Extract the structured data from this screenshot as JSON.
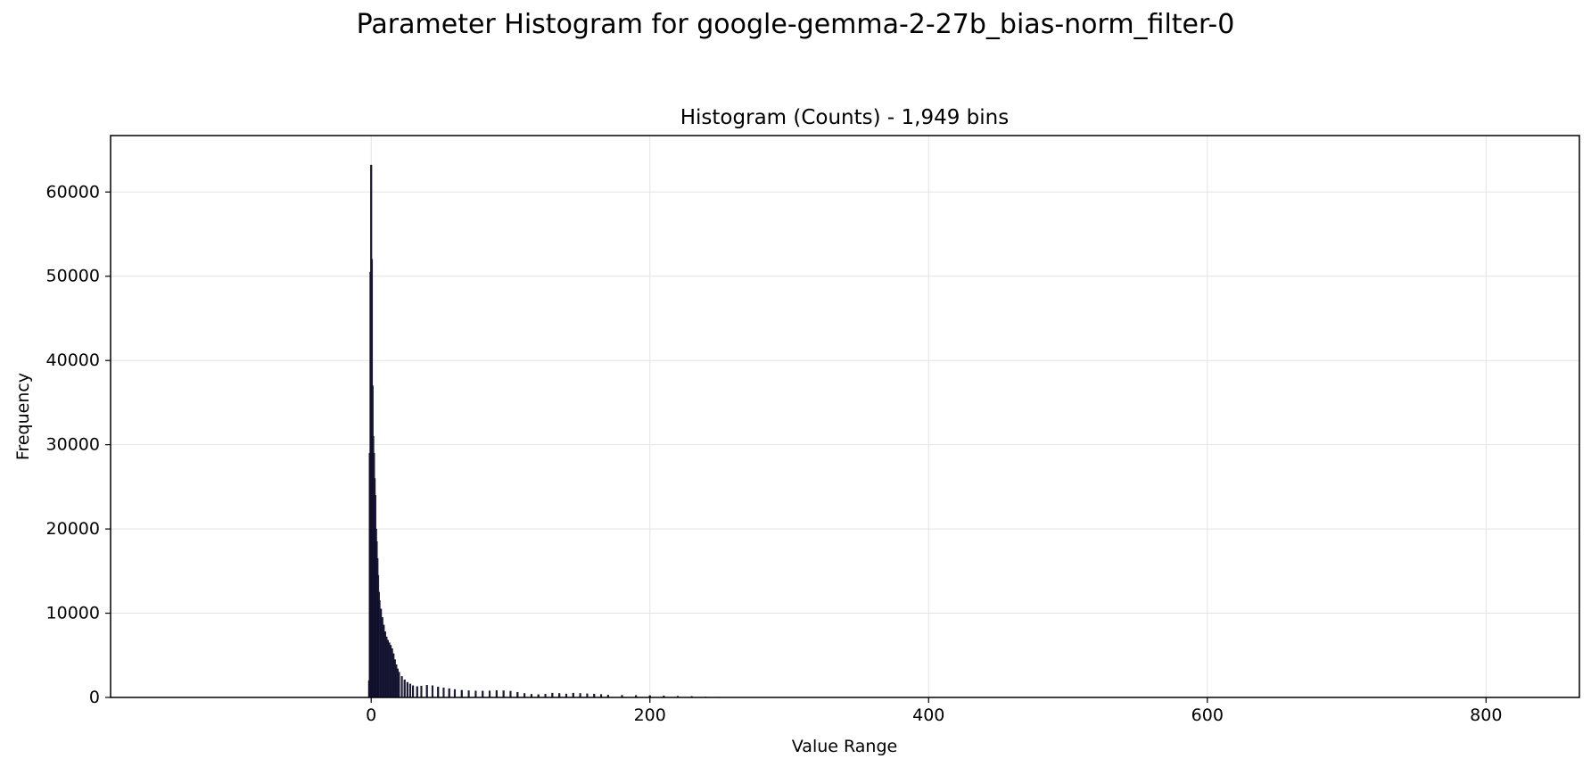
{
  "chart_data": {
    "type": "bar",
    "title": "Parameter Histogram for google-gemma-2-27b_bias-norm_filter-0",
    "subtitle": "Histogram (Counts) - 1,949 bins",
    "xlabel": "Value Range",
    "ylabel": "Frequency",
    "xlim": [
      -187,
      867
    ],
    "ylim": [
      0,
      66700
    ],
    "xticks": [
      0,
      200,
      400,
      600,
      800
    ],
    "yticks": [
      0,
      10000,
      20000,
      30000,
      40000,
      50000,
      60000
    ],
    "grid": true,
    "bar_color": "#1a1a3a",
    "bin_width": 0.43,
    "bins": [
      [
        -1.5,
        2000
      ],
      [
        -1.0,
        29000
      ],
      [
        -0.5,
        50500
      ],
      [
        0.0,
        63200
      ],
      [
        0.5,
        52000
      ],
      [
        1.0,
        37000
      ],
      [
        1.5,
        31000
      ],
      [
        2.0,
        29000
      ],
      [
        2.5,
        26000
      ],
      [
        3.0,
        24000
      ],
      [
        3.5,
        20000
      ],
      [
        4.0,
        18500
      ],
      [
        4.5,
        16500
      ],
      [
        5.0,
        14500
      ],
      [
        5.5,
        12500
      ],
      [
        6.0,
        11500
      ],
      [
        7.0,
        10500
      ],
      [
        8.0,
        9500
      ],
      [
        9.0,
        8600
      ],
      [
        10.0,
        7800
      ],
      [
        11.0,
        7200
      ],
      [
        12.0,
        6800
      ],
      [
        13.0,
        6500
      ],
      [
        14.0,
        6200
      ],
      [
        15.0,
        5800
      ],
      [
        16.0,
        5200
      ],
      [
        17.0,
        4500
      ],
      [
        18.0,
        3900
      ],
      [
        19.0,
        3400
      ],
      [
        20.0,
        3000
      ],
      [
        22.0,
        2500
      ],
      [
        24.0,
        2100
      ],
      [
        26.0,
        1800
      ],
      [
        28.0,
        1600
      ],
      [
        30.0,
        1400
      ],
      [
        33.0,
        1300
      ],
      [
        36.0,
        1350
      ],
      [
        40.0,
        1450
      ],
      [
        44.0,
        1400
      ],
      [
        48.0,
        1250
      ],
      [
        52.0,
        1150
      ],
      [
        56.0,
        1050
      ],
      [
        60.0,
        950
      ],
      [
        65.0,
        850
      ],
      [
        70.0,
        800
      ],
      [
        75.0,
        780
      ],
      [
        80.0,
        760
      ],
      [
        85.0,
        780
      ],
      [
        90.0,
        820
      ],
      [
        95.0,
        800
      ],
      [
        100.0,
        750
      ],
      [
        105.0,
        620
      ],
      [
        110.0,
        480
      ],
      [
        115.0,
        380
      ],
      [
        120.0,
        340
      ],
      [
        125.0,
        400
      ],
      [
        130.0,
        520
      ],
      [
        135.0,
        480
      ],
      [
        140.0,
        420
      ],
      [
        145.0,
        520
      ],
      [
        150.0,
        480
      ],
      [
        155.0,
        440
      ],
      [
        160.0,
        400
      ],
      [
        165.0,
        360
      ],
      [
        170.0,
        280
      ],
      [
        180.0,
        260
      ],
      [
        190.0,
        240
      ],
      [
        200.0,
        220
      ],
      [
        210.0,
        180
      ],
      [
        220.0,
        150
      ],
      [
        230.0,
        120
      ],
      [
        240.0,
        60
      ],
      [
        250.0,
        40
      ],
      [
        260.0,
        30
      ],
      [
        270.0,
        25
      ],
      [
        280.0,
        10
      ]
    ]
  }
}
